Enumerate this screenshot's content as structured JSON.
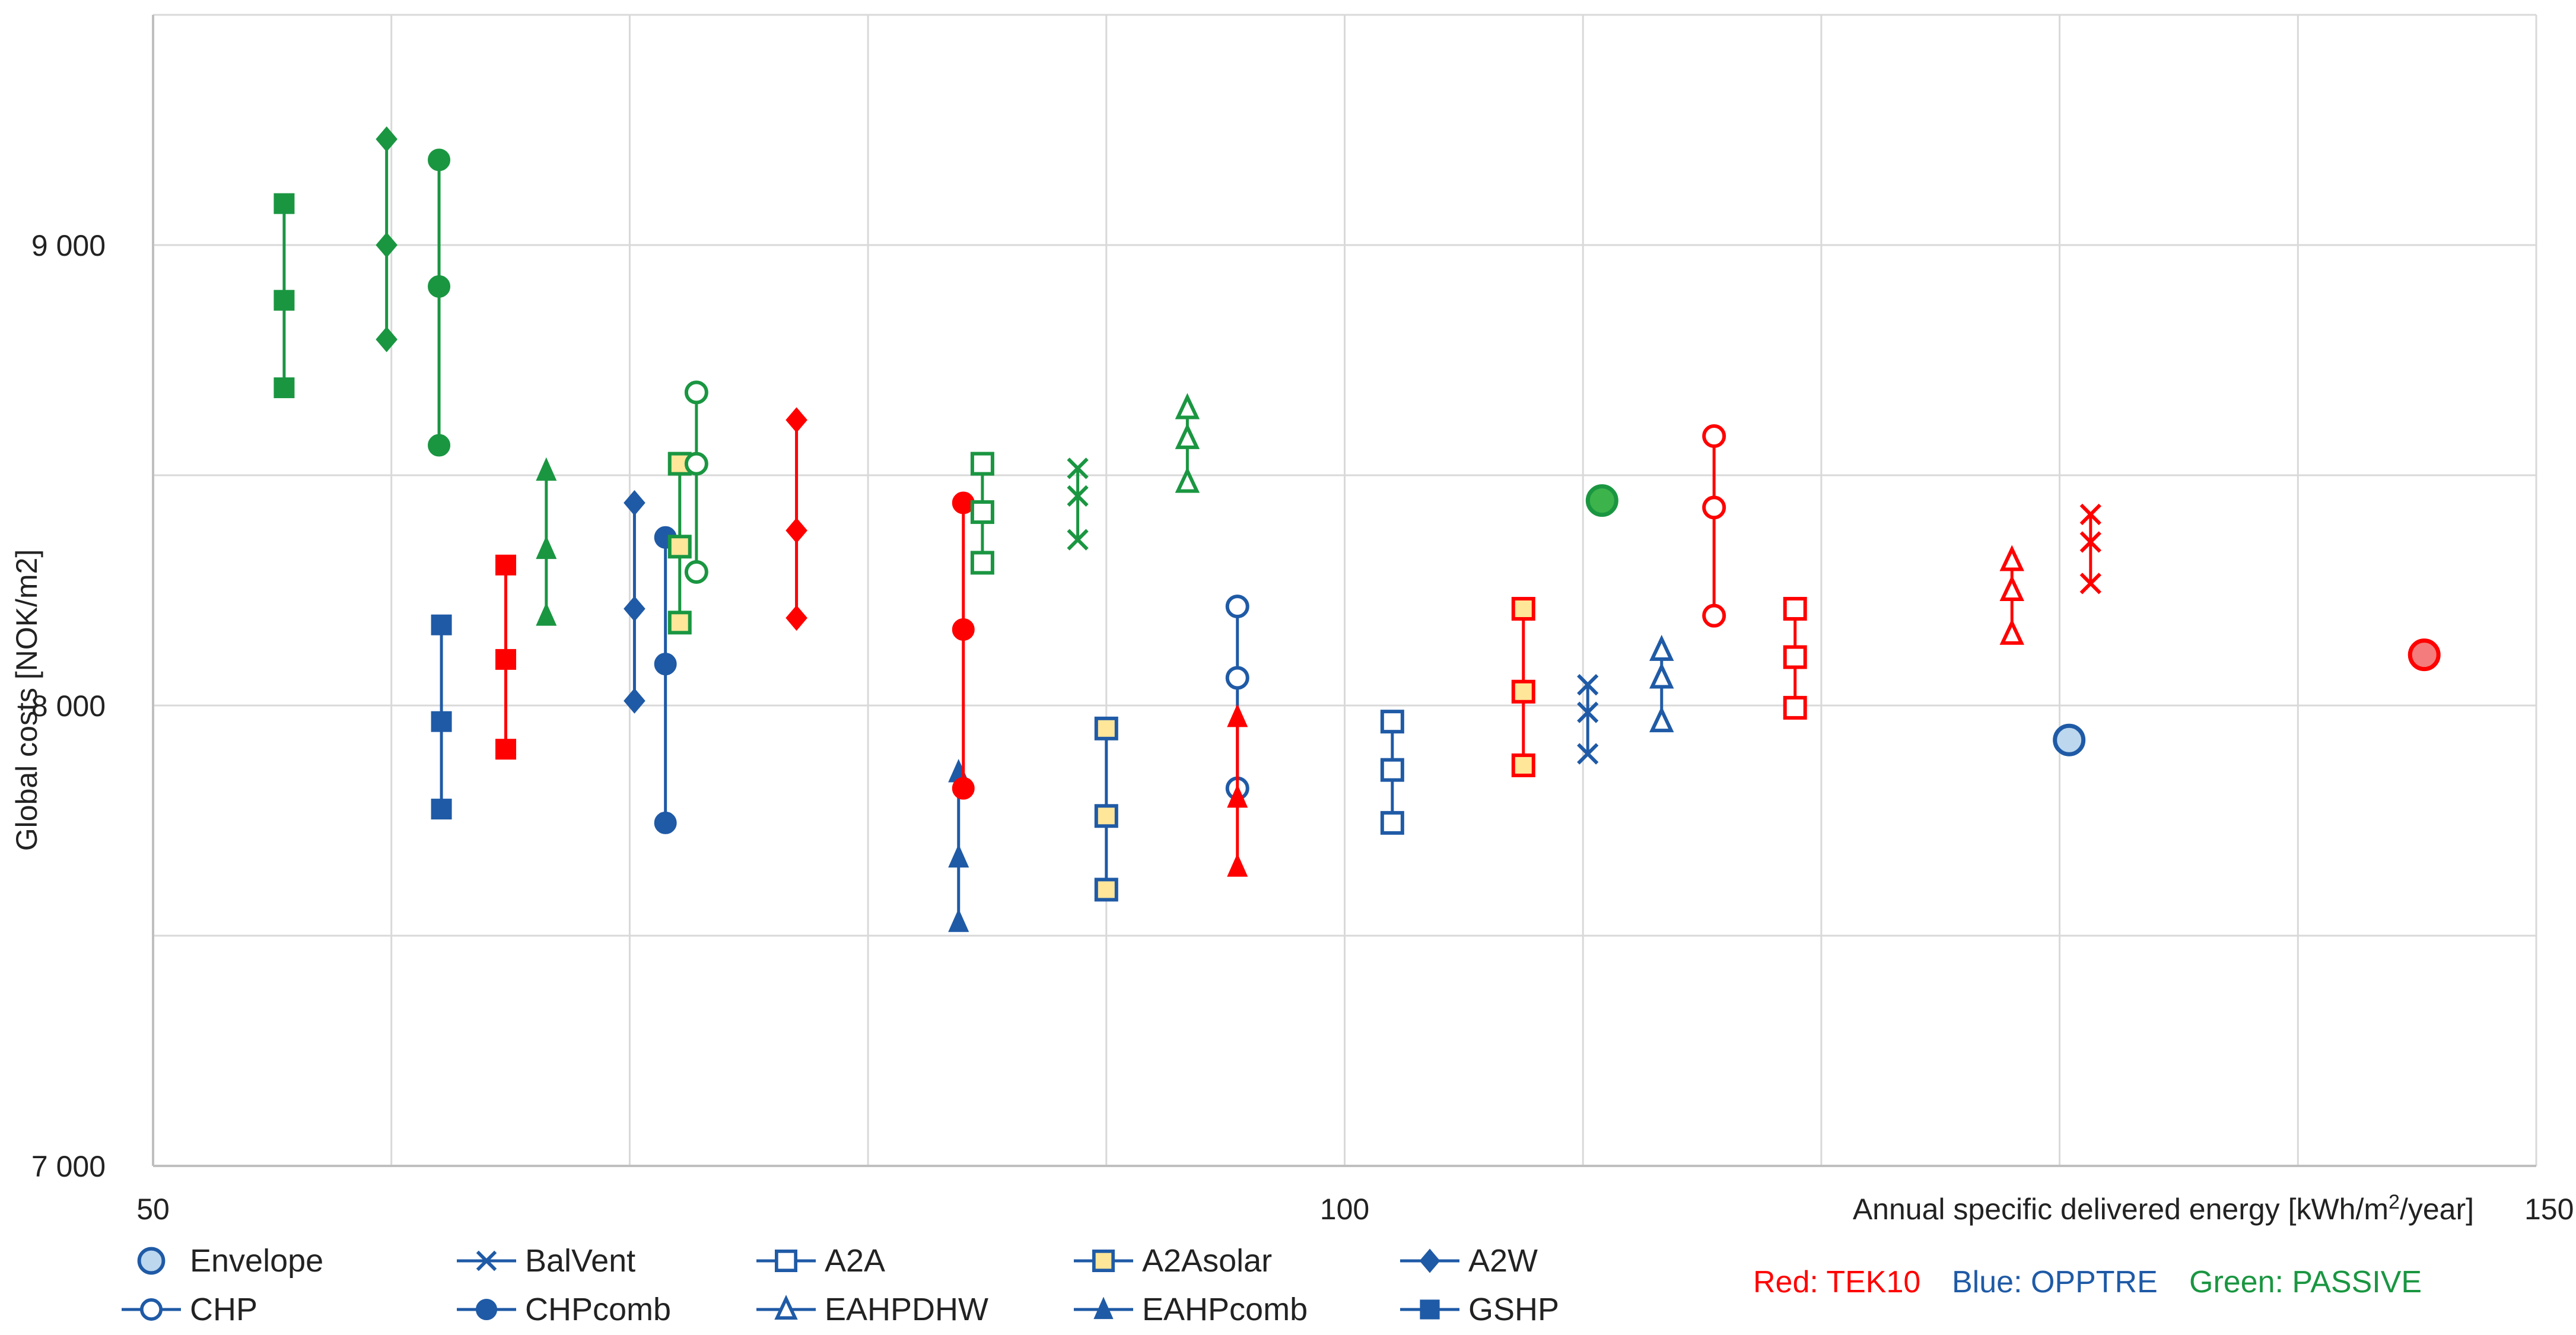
{
  "chart_data": {
    "type": "scatter",
    "title": "",
    "ylabel": "Global costs [NOK/m2]",
    "xlabel_parts": [
      "Annual specific delivered energy [kWh/m",
      "2",
      "/year]"
    ],
    "xlim": [
      50,
      150
    ],
    "ylim": [
      7000,
      9500
    ],
    "x_ticks": [
      50,
      100,
      150
    ],
    "x_tick_labels": [
      "50",
      "100",
      "150"
    ],
    "y_ticks": [
      7000,
      8000,
      9000
    ],
    "y_tick_labels": [
      "7 000",
      "8 000",
      "9 000"
    ],
    "colors": {
      "TEK10": "#ff0000",
      "OPPTRE": "#1f5aa6",
      "PASSIVE": "#1a9641",
      "envelope_fill_blue": "#bcd7ee",
      "envelope_fill_green": "#3cb44b",
      "envelope_fill_red": "#f47c7c",
      "solar_fill": "#ffe699"
    },
    "series": [
      {
        "name": "GSHP",
        "level": "PASSIVE",
        "marker": "square-filled",
        "x": 55.5,
        "y": [
          9090,
          8880,
          8690
        ]
      },
      {
        "name": "A2W",
        "level": "PASSIVE",
        "marker": "diamond-filled",
        "x": 59.8,
        "y": [
          9230,
          9000,
          8795
        ]
      },
      {
        "name": "CHPcomb",
        "level": "PASSIVE",
        "marker": "circle-filled",
        "x": 62.0,
        "y": [
          9185,
          8910,
          8565
        ]
      },
      {
        "name": "GSHP",
        "level": "OPPTRE",
        "marker": "square-filled",
        "x": 62.1,
        "y": [
          8175,
          7965,
          7775
        ]
      },
      {
        "name": "GSHP",
        "level": "TEK10",
        "marker": "square-filled",
        "x": 64.8,
        "y": [
          8305,
          8100,
          7905
        ]
      },
      {
        "name": "EAHPcomb",
        "level": "PASSIVE",
        "marker": "triangle-filled",
        "x": 66.5,
        "y": [
          8510,
          8340,
          8195
        ]
      },
      {
        "name": "A2W",
        "level": "OPPTRE",
        "marker": "diamond-filled",
        "x": 70.2,
        "y": [
          8440,
          8210,
          8010
        ]
      },
      {
        "name": "CHPcomb",
        "level": "OPPTRE",
        "marker": "circle-filled",
        "x": 71.5,
        "y": [
          8365,
          8090,
          7745
        ]
      },
      {
        "name": "A2Asolar",
        "level": "PASSIVE",
        "marker": "square-solar",
        "x": 72.1,
        "y": [
          8525,
          8345,
          8180
        ]
      },
      {
        "name": "CHP",
        "level": "PASSIVE",
        "marker": "circle-open",
        "x": 72.8,
        "y": [
          8680,
          8525,
          8290
        ]
      },
      {
        "name": "A2W",
        "level": "TEK10",
        "marker": "diamond-filled",
        "x": 77.0,
        "y": [
          8620,
          8380,
          8190
        ]
      },
      {
        "name": "EAHPcomb",
        "level": "OPPTRE",
        "marker": "triangle-filled",
        "x": 83.8,
        "y": [
          7855,
          7670,
          7530
        ]
      },
      {
        "name": "CHPcomb",
        "level": "TEK10",
        "marker": "circle-filled",
        "x": 84.0,
        "y": [
          8440,
          8165,
          7820
        ]
      },
      {
        "name": "A2A",
        "level": "PASSIVE",
        "marker": "square-open",
        "x": 84.8,
        "y": [
          8525,
          8420,
          8310
        ]
      },
      {
        "name": "BalVent",
        "level": "PASSIVE",
        "marker": "x",
        "x": 88.8,
        "y": [
          8515,
          8455,
          8360
        ]
      },
      {
        "name": "A2Asolar",
        "level": "OPPTRE",
        "marker": "square-solar",
        "x": 90.0,
        "y": [
          7950,
          7760,
          7600
        ]
      },
      {
        "name": "EAHPDHW",
        "level": "PASSIVE",
        "marker": "triangle-open",
        "x": 93.4,
        "y": [
          8645,
          8580,
          8485
        ]
      },
      {
        "name": "CHP",
        "level": "OPPTRE",
        "marker": "circle-open",
        "x": 95.5,
        "y": [
          8215,
          8060,
          7820
        ]
      },
      {
        "name": "EAHPcomb",
        "level": "TEK10",
        "marker": "triangle-filled",
        "x": 95.5,
        "y": [
          7975,
          7800,
          7650
        ]
      },
      {
        "name": "A2A",
        "level": "OPPTRE",
        "marker": "square-open",
        "x": 102.0,
        "y": [
          7965,
          7860,
          7745
        ]
      },
      {
        "name": "A2Asolar",
        "level": "TEK10",
        "marker": "square-solar",
        "x": 107.5,
        "y": [
          8210,
          8030,
          7870
        ]
      },
      {
        "name": "BalVent",
        "level": "OPPTRE",
        "marker": "x",
        "x": 110.2,
        "y": [
          8045,
          7985,
          7895
        ]
      },
      {
        "name": "Envelope",
        "level": "PASSIVE",
        "marker": "circle-envelope",
        "x": 110.8,
        "y": [
          8445
        ]
      },
      {
        "name": "EAHPDHW",
        "level": "OPPTRE",
        "marker": "triangle-open",
        "x": 113.3,
        "y": [
          8120,
          8060,
          7965
        ]
      },
      {
        "name": "CHP",
        "level": "TEK10",
        "marker": "circle-open",
        "x": 115.5,
        "y": [
          8585,
          8430,
          8195
        ]
      },
      {
        "name": "A2A",
        "level": "TEK10",
        "marker": "square-open",
        "x": 118.9,
        "y": [
          8210,
          8105,
          7995
        ]
      },
      {
        "name": "EAHPDHW",
        "level": "TEK10",
        "marker": "triangle-open",
        "x": 128.0,
        "y": [
          8315,
          8250,
          8155
        ]
      },
      {
        "name": "Envelope",
        "level": "OPPTRE",
        "marker": "circle-envelope",
        "x": 130.4,
        "y": [
          7925
        ]
      },
      {
        "name": "BalVent",
        "level": "TEK10",
        "marker": "x",
        "x": 131.3,
        "y": [
          8415,
          8355,
          8265
        ]
      },
      {
        "name": "Envelope",
        "level": "TEK10",
        "marker": "circle-envelope",
        "x": 145.3,
        "y": [
          8110
        ]
      }
    ]
  },
  "legend": {
    "rows": [
      [
        {
          "label": "Envelope",
          "marker": "circle-envelope"
        },
        {
          "label": "BalVent",
          "marker": "x"
        },
        {
          "label": "A2A",
          "marker": "square-open"
        },
        {
          "label": "A2Asolar",
          "marker": "square-solar"
        },
        {
          "label": "A2W",
          "marker": "diamond-filled"
        }
      ],
      [
        {
          "label": "CHP",
          "marker": "circle-open"
        },
        {
          "label": "CHPcomb",
          "marker": "circle-filled"
        },
        {
          "label": "EAHPDHW",
          "marker": "triangle-open"
        },
        {
          "label": "EAHPcomb",
          "marker": "triangle-filled"
        },
        {
          "label": "GSHP",
          "marker": "square-filled"
        }
      ]
    ]
  },
  "notes": [
    {
      "text": "Red: TEK10",
      "level": "TEK10"
    },
    {
      "text": "Blue: OPPTRE",
      "level": "OPPTRE"
    },
    {
      "text": "Green: PASSIVE",
      "level": "PASSIVE"
    }
  ]
}
